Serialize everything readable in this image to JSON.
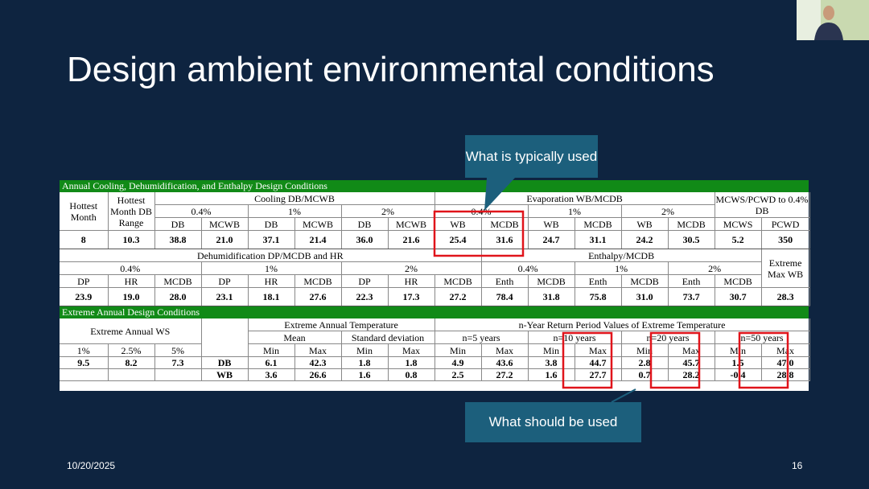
{
  "slide": {
    "title": "Design ambient environmental conditions",
    "date": "10/20/2025",
    "page_number": "16"
  },
  "callouts": {
    "typical": "What is typically used",
    "should": "What should be used"
  },
  "table": {
    "cooling": {
      "heading": "Annual Cooling, Dehumidification, and Enthalpy Design Conditions",
      "header_rows": [
        [
          "Hottest Month",
          "Hottest Month DB Range",
          "Cooling DB/MCWB",
          "Evaporation WB/MCDB",
          "MCWS/PCWD to 0.4% DB"
        ],
        [
          "0.4%",
          "1%",
          "2%",
          "0.4%",
          "1%",
          "2%"
        ],
        [
          "DB",
          "MCWB",
          "DB",
          "MCWB",
          "DB",
          "MCWB",
          "WB",
          "MCDB",
          "WB",
          "MCDB",
          "WB",
          "MCDB",
          "MCWS",
          "PCWD"
        ]
      ],
      "values": [
        "8",
        "10.3",
        "38.8",
        "21.0",
        "37.1",
        "21.4",
        "36.0",
        "21.6",
        "25.4",
        "31.6",
        "24.7",
        "31.1",
        "24.2",
        "30.5",
        "5.2",
        "350"
      ]
    },
    "dehumidification": {
      "header_rows": [
        [
          "Dehumidification DP/MCDB and HR",
          "Enthalpy/MCDB",
          "Extreme Max WB"
        ],
        [
          "0.4%",
          "1%",
          "2%",
          "0.4%",
          "1%",
          "2%"
        ],
        [
          "DP",
          "HR",
          "MCDB",
          "DP",
          "HR",
          "MCDB",
          "DP",
          "HR",
          "MCDB",
          "Enth",
          "MCDB",
          "Enth",
          "MCDB",
          "Enth",
          "MCDB"
        ]
      ],
      "values": [
        "23.9",
        "19.0",
        "28.0",
        "23.1",
        "18.1",
        "27.6",
        "22.3",
        "17.3",
        "27.2",
        "78.4",
        "31.8",
        "75.8",
        "31.0",
        "73.7",
        "30.7",
        "28.3"
      ]
    },
    "extreme": {
      "heading": "Extreme Annual Design Conditions",
      "header_rows": [
        [
          "Extreme Annual WS",
          "Extreme Annual Temperature",
          "n-Year Return Period Values of Extreme Temperature"
        ],
        [
          "Mean",
          "Standard deviation",
          "n=5 years",
          "n=10 years",
          "n=20 years",
          "n=50 years"
        ],
        [
          "1%",
          "2.5%",
          "5%",
          "Min",
          "Max",
          "Min",
          "Max",
          "Min",
          "Max",
          "Min",
          "Max",
          "Min",
          "Max",
          "Min",
          "Max"
        ]
      ],
      "rows": [
        [
          "9.5",
          "8.2",
          "7.3",
          "DB",
          "6.1",
          "42.3",
          "1.8",
          "1.8",
          "4.9",
          "43.6",
          "3.8",
          "44.7",
          "2.8",
          "45.7",
          "1.5",
          "47.0"
        ],
        [
          "WB",
          "3.6",
          "26.6",
          "1.6",
          "0.8",
          "2.5",
          "27.2",
          "1.6",
          "27.7",
          "0.7",
          "28.2",
          "-0.4",
          "28.8"
        ]
      ]
    }
  }
}
